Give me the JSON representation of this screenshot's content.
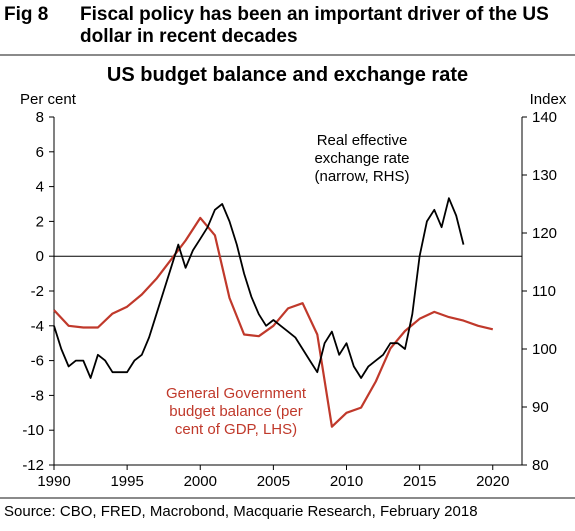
{
  "figure": {
    "number": "Fig 8",
    "title": "Fiscal policy has been an important driver of the US dollar in recent decades"
  },
  "source": "Source: CBO, FRED, Macrobond, Macquarie Research, February 2018",
  "chart_data": {
    "type": "line",
    "title": "US budget balance and exchange rate",
    "xlim": [
      1990,
      2022
    ],
    "x_ticks": [
      "1990",
      "1995",
      "2000",
      "2005",
      "2010",
      "2015",
      "2020"
    ],
    "left_axis": {
      "label": "Per cent",
      "ylim": [
        -12,
        8
      ],
      "ticks": [
        "8",
        "6",
        "4",
        "2",
        "0",
        "-2",
        "-4",
        "-6",
        "-8",
        "-10",
        "-12"
      ]
    },
    "right_axis": {
      "label": "Index",
      "ylim": [
        80,
        140
      ],
      "ticks": [
        "140",
        "130",
        "120",
        "110",
        "100",
        "90",
        "80"
      ]
    },
    "zero_line": true,
    "annotations": [
      {
        "lines": [
          "Real effective",
          "exchange rate",
          "(narrow, RHS)"
        ],
        "color": "#000000"
      },
      {
        "lines": [
          "General Government",
          "budget balance (per",
          "cent of GDP, LHS)"
        ],
        "color": "#c0392b"
      }
    ],
    "series": [
      {
        "name": "General Government budget balance (per cent of GDP, LHS)",
        "axis": "left",
        "color": "#c0392b",
        "x": [
          1990,
          1991,
          1992,
          1993,
          1994,
          1995,
          1996,
          1997,
          1998,
          1999,
          2000,
          2001,
          2002,
          2003,
          2004,
          2005,
          2006,
          2007,
          2008,
          2009,
          2010,
          2011,
          2012,
          2013,
          2014,
          2015,
          2016,
          2017,
          2018,
          2019,
          2020
        ],
        "values": [
          -3.1,
          -4.0,
          -4.1,
          -4.1,
          -3.3,
          -2.9,
          -2.2,
          -1.3,
          -0.2,
          0.9,
          2.2,
          1.2,
          -2.4,
          -4.5,
          -4.6,
          -4.0,
          -3.0,
          -2.7,
          -4.5,
          -9.8,
          -9.0,
          -8.7,
          -7.2,
          -5.3,
          -4.3,
          -3.6,
          -3.2,
          -3.5,
          -3.7,
          -4.0,
          -4.2
        ]
      },
      {
        "name": "Real effective exchange rate (narrow, RHS)",
        "axis": "right",
        "color": "#000000",
        "x": [
          1990.0,
          1990.5,
          1991.0,
          1991.5,
          1992.0,
          1992.5,
          1993.0,
          1993.5,
          1994.0,
          1994.5,
          1995.0,
          1995.5,
          1996.0,
          1996.5,
          1997.0,
          1997.5,
          1998.0,
          1998.5,
          1999.0,
          1999.5,
          2000.0,
          2000.5,
          2001.0,
          2001.5,
          2002.0,
          2002.5,
          2003.0,
          2003.5,
          2004.0,
          2004.5,
          2005.0,
          2005.5,
          2006.0,
          2006.5,
          2007.0,
          2007.5,
          2008.0,
          2008.5,
          2009.0,
          2009.5,
          2010.0,
          2010.5,
          2011.0,
          2011.5,
          2012.0,
          2012.5,
          2013.0,
          2013.5,
          2014.0,
          2014.5,
          2015.0,
          2015.5,
          2016.0,
          2016.5,
          2017.0,
          2017.5,
          2018.0
        ],
        "values": [
          104,
          100,
          97,
          98,
          98,
          95,
          99,
          98,
          96,
          96,
          96,
          98,
          99,
          102,
          106,
          110,
          114,
          118,
          114,
          117,
          119,
          121,
          124,
          125,
          122,
          118,
          113,
          109,
          106,
          104,
          105,
          104,
          103,
          102,
          100,
          98,
          96,
          101,
          103,
          99,
          101,
          97,
          95,
          97,
          98,
          99,
          101,
          101,
          100,
          106,
          116,
          122,
          124,
          121,
          126,
          123,
          118
        ]
      }
    ]
  }
}
